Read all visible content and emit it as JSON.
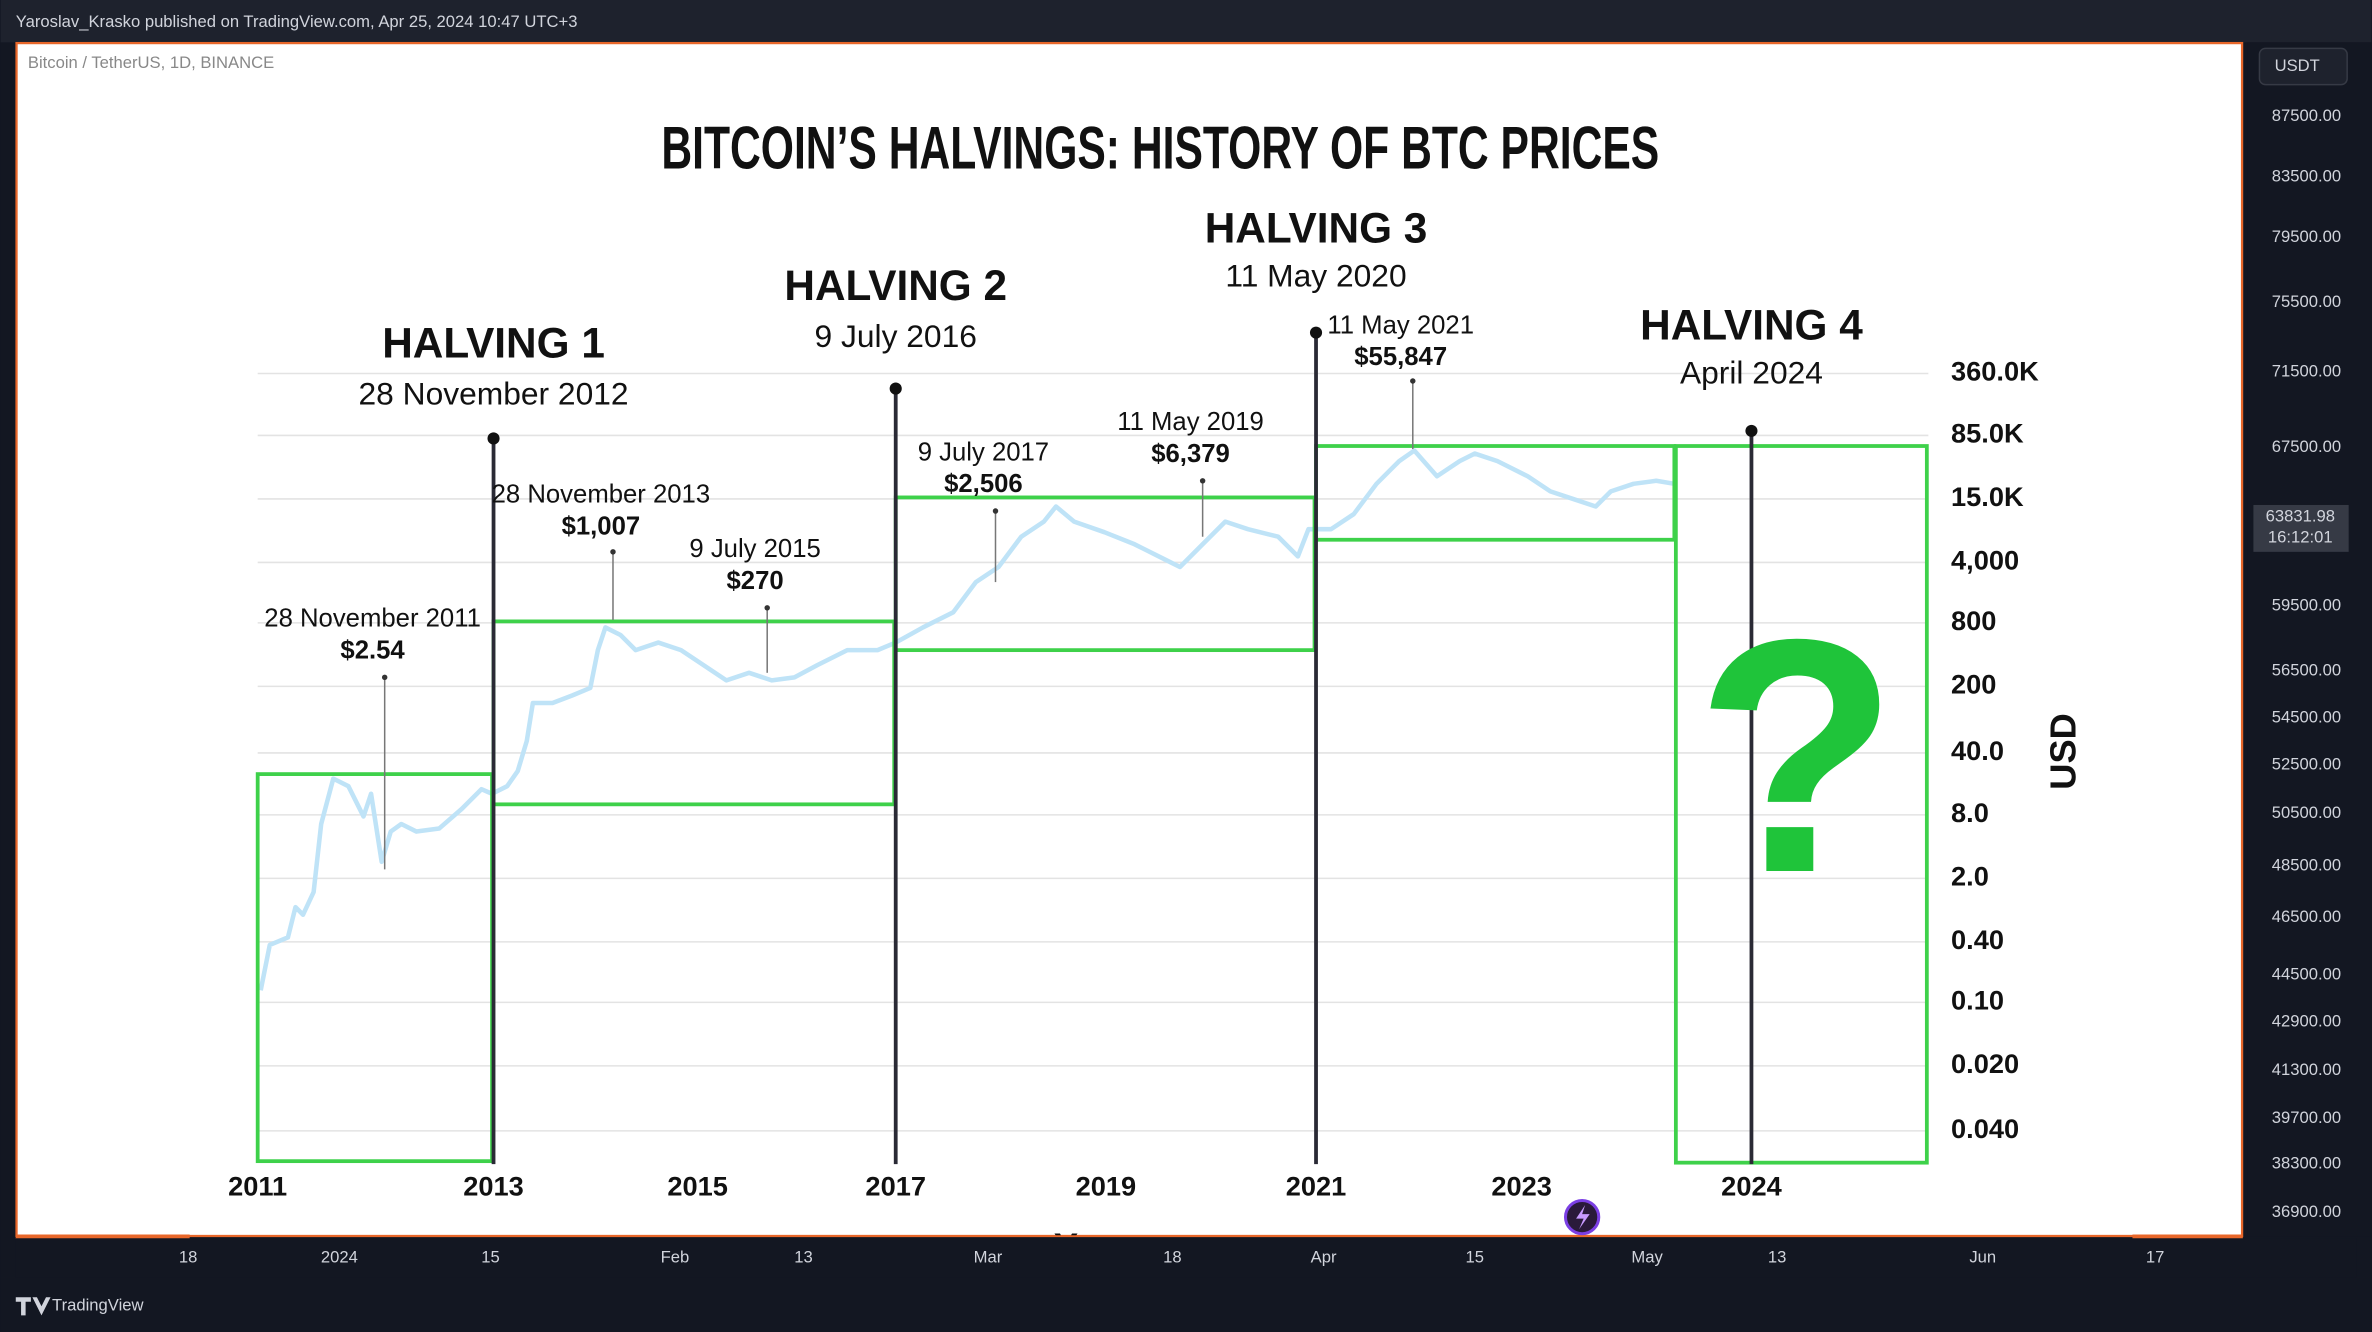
{
  "header": {
    "published": "Yaroslav_Krasko published on TradingView.com, Apr 25, 2024 10:47 UTC+3"
  },
  "chart": {
    "symbol": "Bitcoin / TetherUS, 1D, BINANCE",
    "title": "BITCOIN’S HALVINGS: HISTORY OF BTC PRICES",
    "halvings": [
      {
        "label": "HALVING 1",
        "date": "28 November 2012"
      },
      {
        "label": "HALVING 2",
        "date": "9 July 2016"
      },
      {
        "label": "HALVING 3",
        "date": "11 May 2020"
      },
      {
        "label": "HALVING 4",
        "date": "April 2024"
      }
    ],
    "annotations": [
      {
        "date": "28 November 2011",
        "price": "$2.54"
      },
      {
        "date": "28 November 2013",
        "price": "$1,007"
      },
      {
        "date": "9 July 2015",
        "price": "$270"
      },
      {
        "date": "9 July 2017",
        "price": "$2,506"
      },
      {
        "date": "11 May 2019",
        "price": "$6,379"
      },
      {
        "date": "11 May 2021",
        "price": "$55,847"
      }
    ],
    "y_axis_labels": [
      "360.0K",
      "85.0K",
      "15.0K",
      "4,000",
      "800",
      "200",
      "40.0",
      "8.0",
      "2.0",
      "0.40",
      "0.10",
      "0.020",
      "0.040"
    ],
    "y_axis_title": "USD",
    "x_axis_labels": [
      "2011",
      "2013",
      "2015",
      "2017",
      "2019",
      "2021",
      "2023",
      "2024"
    ],
    "x_axis_title": "Year",
    "question": "?"
  },
  "price_scale": {
    "currency": "USDT",
    "labels": [
      "87500.00",
      "83500.00",
      "79500.00",
      "75500.00",
      "71500.00",
      "67500.00",
      "59500.00",
      "56500.00",
      "54500.00",
      "52500.00",
      "50500.00",
      "48500.00",
      "46500.00",
      "44500.00",
      "42900.00",
      "41300.00",
      "39700.00",
      "38300.00",
      "36900.00"
    ],
    "current_price": "63831.98",
    "countdown": "16:12:01"
  },
  "time_axis": {
    "labels": [
      "18",
      "2024",
      "15",
      "Feb",
      "13",
      "Mar",
      "18",
      "Apr",
      "15",
      "May",
      "13",
      "Jun",
      "17"
    ]
  },
  "footer": {
    "brand": "TradingView"
  }
}
